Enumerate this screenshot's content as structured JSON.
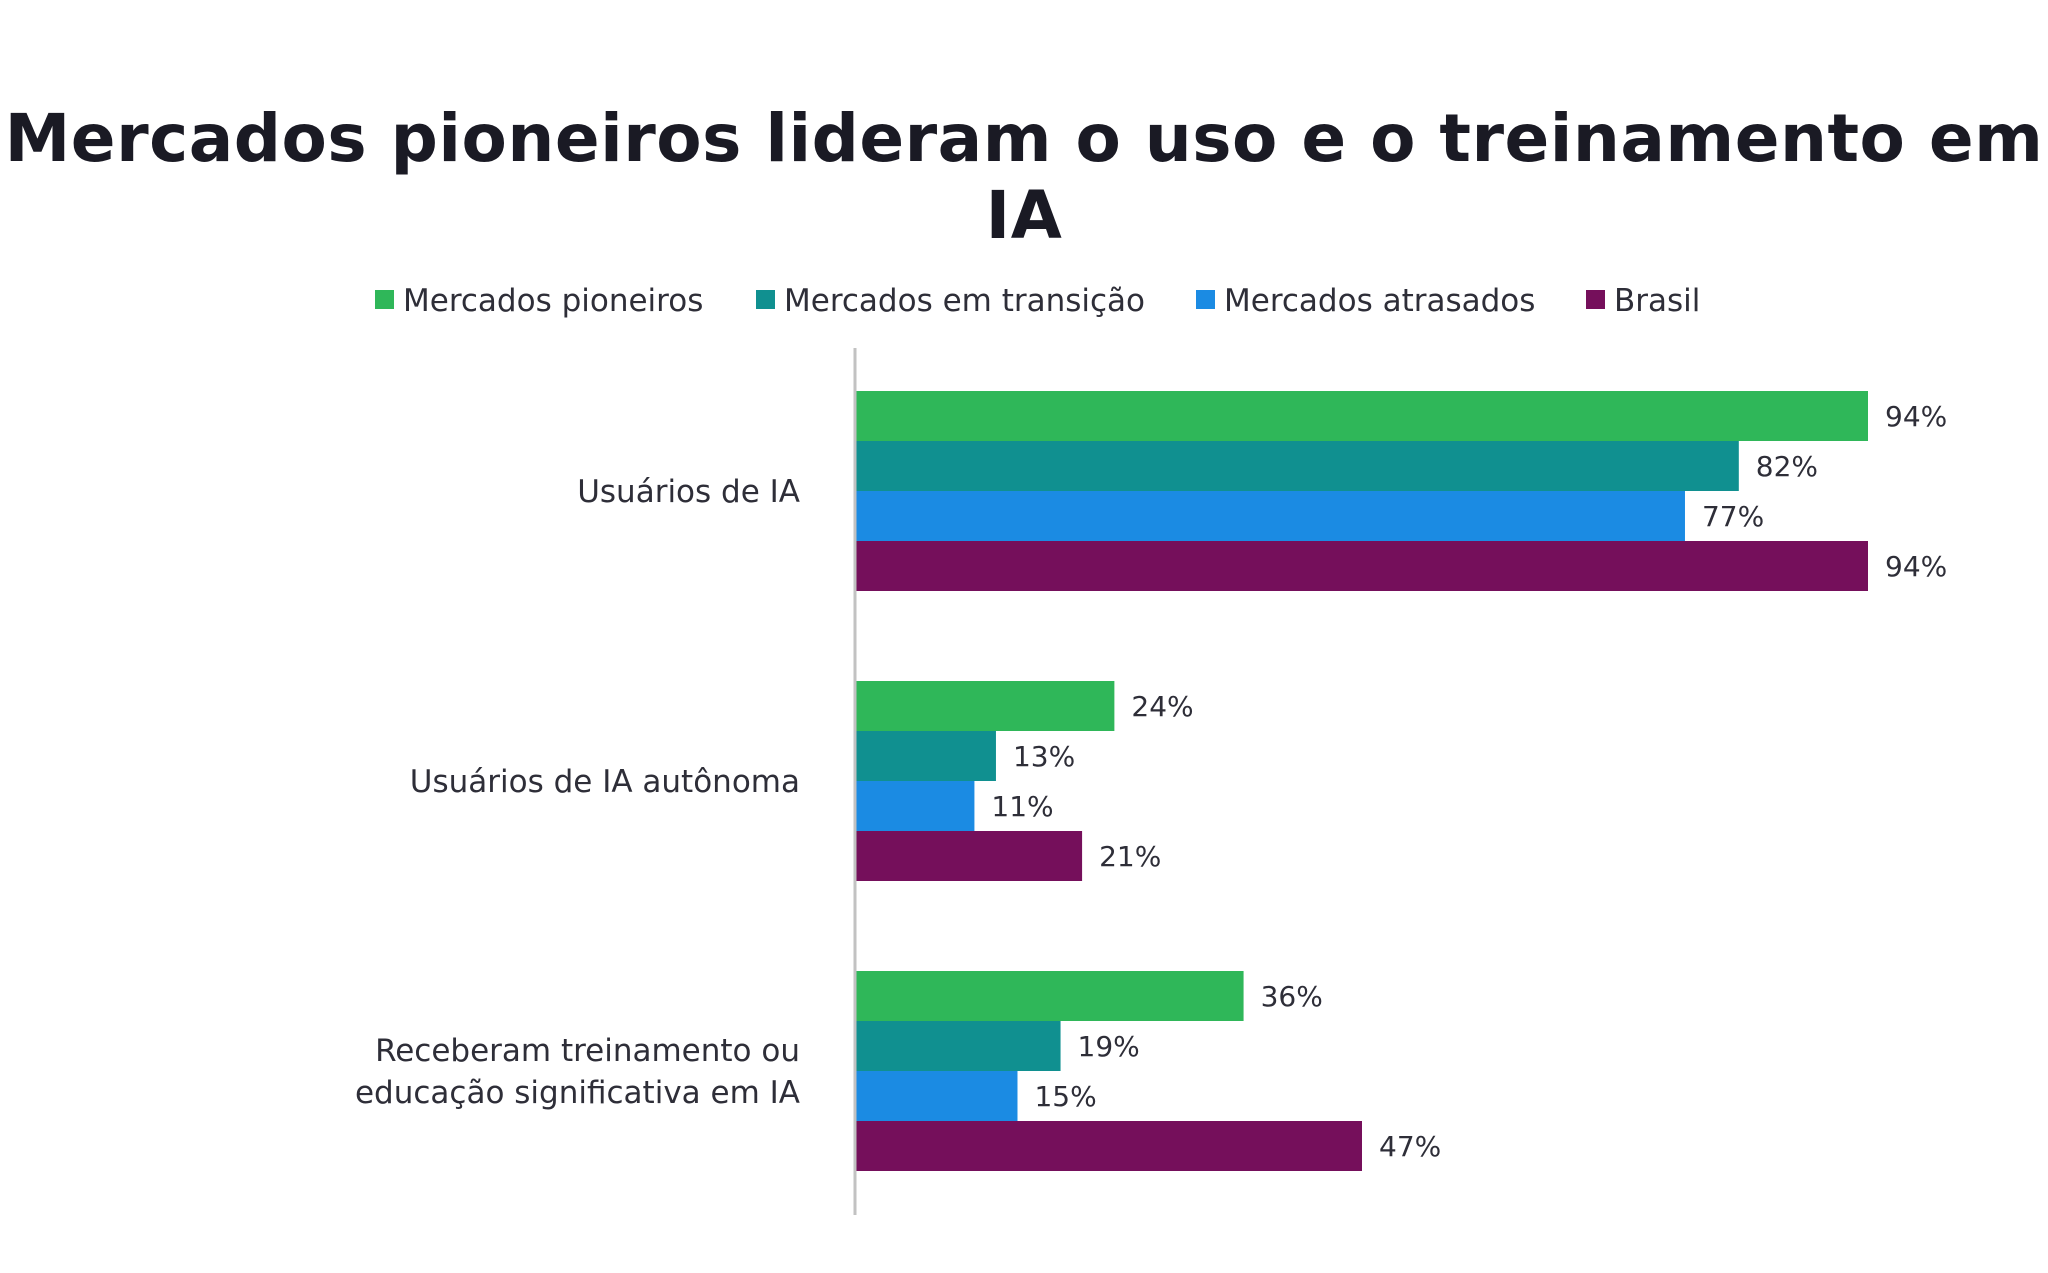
{
  "chart_data": {
    "type": "bar",
    "orientation": "horizontal",
    "title": "Mercados pioneiros lideram o uso e o treinamento em IA",
    "xlabel": "",
    "ylabel": "",
    "xlim": [
      0,
      100
    ],
    "grid": false,
    "legend_position": "top-center",
    "categories": [
      [
        "Usuários de IA"
      ],
      [
        "Usuários de IA autônoma"
      ],
      [
        "Receberam treinamento ou",
        "educação significativa em IA"
      ]
    ],
    "series": [
      {
        "name": "Mercados pioneiros",
        "color": "#2fb759",
        "values": [
          94,
          24,
          36
        ],
        "labels": [
          "94%",
          "24%",
          "36%"
        ]
      },
      {
        "name": "Mercados em transição",
        "color": "#109090",
        "values": [
          82,
          13,
          19
        ],
        "labels": [
          "82%",
          "13%",
          "19%"
        ]
      },
      {
        "name": "Mercados atrasados",
        "color": "#1b8be3",
        "values": [
          77,
          11,
          15
        ],
        "labels": [
          "77%",
          "11%",
          "15%"
        ]
      },
      {
        "name": "Brasil",
        "color": "#750f5b",
        "values": [
          94,
          21,
          47
        ],
        "labels": [
          "94%",
          "21%",
          "47%"
        ]
      }
    ],
    "axis_color": "#c2c2c2"
  }
}
